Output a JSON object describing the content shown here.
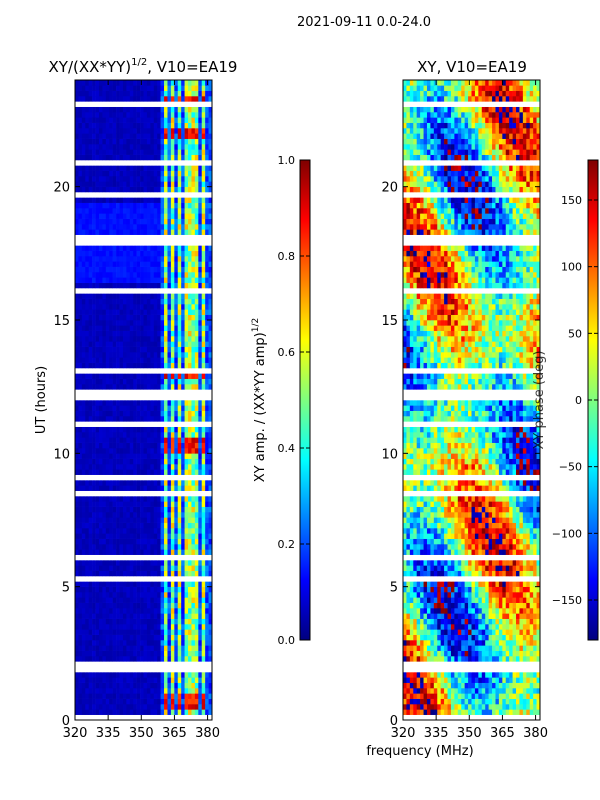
{
  "suptitle": "2021-09-11 0.0-24.0",
  "shared_xlabel": "frequency (MHz)",
  "chart_data": [
    {
      "type": "heatmap",
      "title": "XY/(XX*YY)^{1/2}, V10=EA19",
      "title_parts": {
        "main": "XY/(XX*YY)",
        "sup": "1/2",
        "rest": ", V10=EA19"
      },
      "xlabel": "frequency (MHz)",
      "ylabel": "UT (hours)",
      "xlim": [
        320,
        382
      ],
      "ylim": [
        0,
        24
      ],
      "xticks": [
        320,
        335,
        350,
        365,
        380
      ],
      "yticks": [
        0,
        5,
        10,
        15,
        20
      ],
      "colormap": "jet",
      "colorbar": {
        "label": "XY amp. / (XX*YY amp)^{1/2}",
        "label_parts": {
          "main": "XY amp. / (XX*YY amp)",
          "sup": "1/2"
        },
        "range": [
          0.0,
          1.0
        ],
        "ticks": [
          "0.0",
          "0.2",
          "0.4",
          "0.6",
          "0.8",
          "1.0"
        ]
      },
      "background_value": 0.04,
      "active_band_mhz": [
        359,
        382
      ],
      "active_channels_mhz": [
        361,
        364,
        367,
        371,
        374,
        378
      ],
      "peak_rows_hours": [
        [
          0.4,
          1.0
        ],
        [
          10.0,
          10.5
        ],
        [
          12.8,
          13.0
        ],
        [
          21.8,
          22.2
        ],
        [
          23.0,
          23.5
        ]
      ],
      "gap_rows_hours": [
        0.1,
        1.4,
        1.95,
        2.05,
        3.6,
        5.3,
        5.6,
        6.1,
        7.0,
        7.2,
        7.8,
        8.2,
        8.5,
        8.8,
        9.1,
        9.6,
        11.1,
        11.6,
        12.1,
        12.3,
        13.1,
        13.4,
        14.4,
        15.2,
        15.8,
        16.1,
        17.4,
        17.9,
        18.1,
        19.7,
        20.9,
        21.4,
        23.1,
        23.6,
        23.8
      ]
    },
    {
      "type": "heatmap",
      "title": "XY, V10=EA19",
      "xlabel": "frequency (MHz)",
      "ylabel": "",
      "xlim": [
        320,
        382
      ],
      "ylim": [
        0,
        24
      ],
      "xticks": [
        320,
        335,
        350,
        365,
        380
      ],
      "yticks": [
        0,
        5,
        10,
        15,
        20
      ],
      "colormap": "jet",
      "colorbar": {
        "label": "XY phase (deg)",
        "range": [
          -180,
          180
        ],
        "ticks": [
          "150",
          "100",
          "50",
          "0",
          "−50",
          "−100",
          "−150"
        ],
        "tick_values": [
          150,
          100,
          50,
          0,
          -50,
          -100,
          -150
        ]
      },
      "gap_rows_hours": [
        0.1,
        1.4,
        1.95,
        2.05,
        3.6,
        5.3,
        5.6,
        6.1,
        7.0,
        7.2,
        7.8,
        8.2,
        8.5,
        8.8,
        9.1,
        9.6,
        11.1,
        11.6,
        12.1,
        12.3,
        13.1,
        13.4,
        14.4,
        15.2,
        15.8,
        16.1,
        17.4,
        17.9,
        18.1,
        19.7,
        20.9,
        21.4,
        23.1,
        23.6,
        23.8
      ]
    }
  ]
}
